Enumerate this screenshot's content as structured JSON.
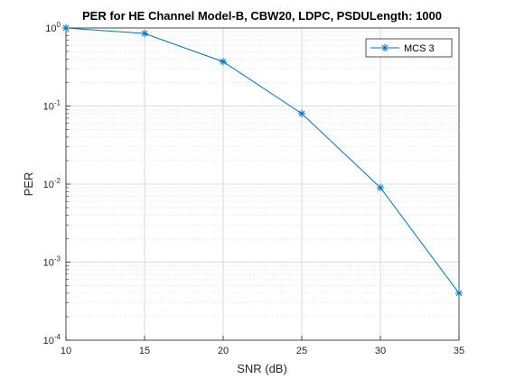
{
  "chart_data": {
    "type": "line",
    "title": "PER for HE Channel Model-B, CBW20, LDPC, PSDULength: 1000",
    "xlabel": "SNR (dB)",
    "ylabel": "PER",
    "x": [
      10,
      15,
      20,
      25,
      30,
      35
    ],
    "xlim": [
      10,
      35
    ],
    "ylim": [
      0.0001,
      1
    ],
    "yscale": "log",
    "xticks": [
      "10",
      "15",
      "20",
      "25",
      "30",
      "35"
    ],
    "yticks": [
      {
        "base": "10",
        "exp": "-4",
        "value": 0.0001
      },
      {
        "base": "10",
        "exp": "-3",
        "value": 0.001
      },
      {
        "base": "10",
        "exp": "-2",
        "value": 0.01
      },
      {
        "base": "10",
        "exp": "-1",
        "value": 0.1
      },
      {
        "base": "10",
        "exp": "0",
        "value": 1
      }
    ],
    "grid": true,
    "minor_grid": true,
    "legend_position": "top-right",
    "series": [
      {
        "name": "MCS 3",
        "color": "#0072BD",
        "marker": "asterisk",
        "values": [
          1.0,
          0.85,
          0.37,
          0.08,
          0.009,
          0.0004
        ]
      }
    ]
  }
}
